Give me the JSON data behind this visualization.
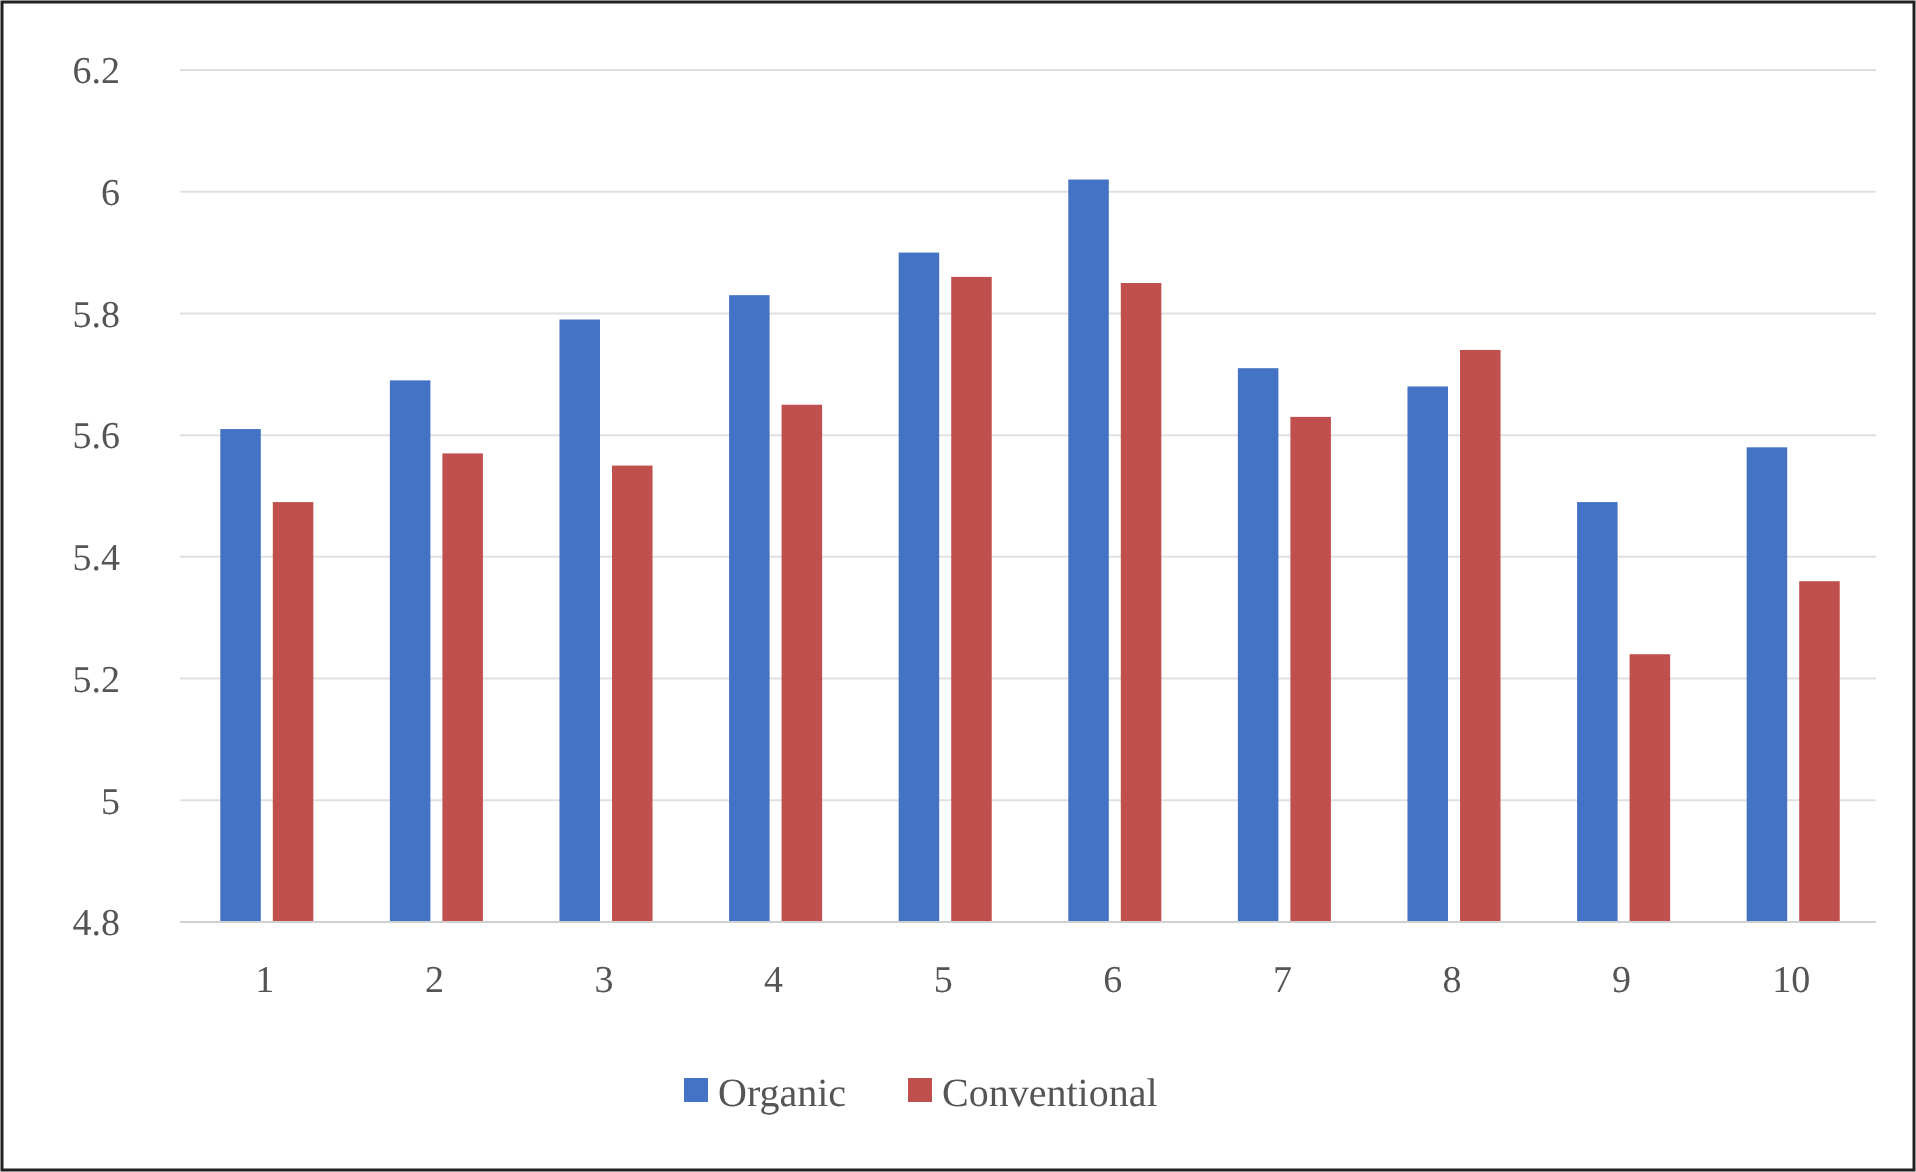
{
  "chart_data": {
    "type": "bar",
    "categories": [
      "1",
      "2",
      "3",
      "4",
      "5",
      "6",
      "7",
      "8",
      "9",
      "10"
    ],
    "series": [
      {
        "name": "Organic",
        "color": "#4472c4",
        "values": [
          5.61,
          5.69,
          5.79,
          5.83,
          5.9,
          6.02,
          5.71,
          5.68,
          5.49,
          5.58
        ]
      },
      {
        "name": "Conventional",
        "color": "#c0504d",
        "values": [
          5.49,
          5.57,
          5.55,
          5.65,
          5.86,
          5.85,
          5.63,
          5.74,
          5.24,
          5.36
        ]
      }
    ],
    "ylim": [
      4.8,
      6.2
    ],
    "yticks": [
      4.8,
      5,
      5.2,
      5.4,
      5.6,
      5.8,
      6,
      6.2
    ],
    "grid": "y",
    "legend": "bottom"
  }
}
